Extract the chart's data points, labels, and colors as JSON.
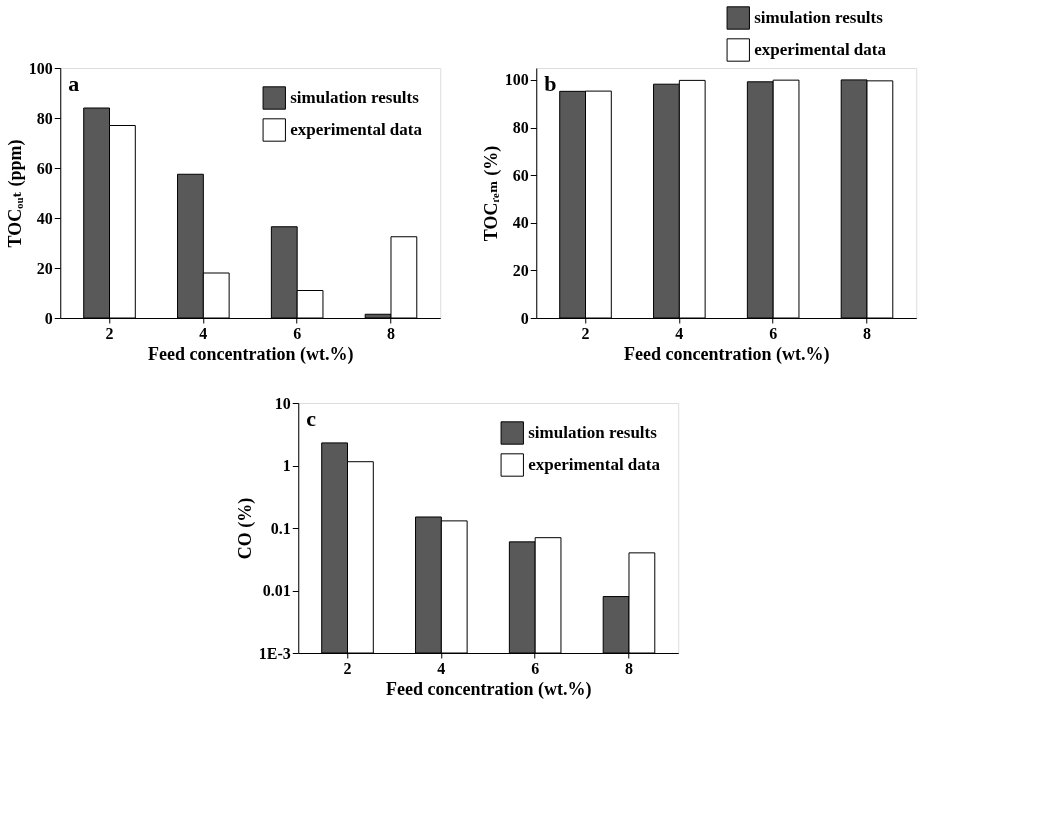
{
  "chart_data": [
    {
      "type": "bar",
      "categories": [
        "2",
        "4",
        "6",
        "8"
      ],
      "xlabel": "Feed concentration (wt.%)",
      "ylabel": "TOCₒᵤₜ (ppm)",
      "annotations": [
        "a"
      ],
      "ylim": [
        0,
        100
      ],
      "yticks": [
        0,
        20,
        40,
        60,
        80,
        100
      ],
      "grid": false,
      "legend": "top right",
      "series": [
        {
          "name": "simulation results",
          "color": "#595959",
          "values": [
            84,
            57.5,
            36.5,
            1.5
          ]
        },
        {
          "name": "experimental data",
          "color": "#ffffff",
          "values": [
            77,
            18,
            11,
            32.5
          ]
        }
      ]
    },
    {
      "type": "bar",
      "categories": [
        "2",
        "4",
        "6",
        "8"
      ],
      "xlabel": "Feed concentration (wt.%)",
      "ylabel": "TOCᵣₑₘ (%)",
      "annotations": [
        "b"
      ],
      "ylim": [
        0,
        105
      ],
      "yticks": [
        0,
        20,
        40,
        60,
        80,
        100
      ],
      "grid": false,
      "legend": "top",
      "series": [
        {
          "name": "simulation results",
          "color": "#595959",
          "values": [
            95.2,
            98.2,
            99.2,
            100
          ]
        },
        {
          "name": "experimental data",
          "color": "#ffffff",
          "values": [
            95.3,
            99.8,
            99.9,
            99.6
          ]
        }
      ]
    },
    {
      "type": "bar",
      "categories": [
        "2",
        "4",
        "6",
        "8"
      ],
      "xlabel": "Feed concentration (wt.%)",
      "ylabel": "CO (%)",
      "annotations": [
        "c"
      ],
      "log": true,
      "ylim": [
        0.001,
        10
      ],
      "yticks": [
        {
          "value": 0.001,
          "label": "1E-3"
        },
        0.01,
        0.1,
        1,
        10
      ],
      "grid": false,
      "legend": "top right",
      "series": [
        {
          "name": "simulation results",
          "color": "#595959",
          "values": [
            2.3,
            0.15,
            0.06,
            0.008
          ]
        },
        {
          "name": "experimental data",
          "color": "#ffffff",
          "values": [
            1.15,
            0.13,
            0.07,
            0.04
          ]
        }
      ]
    }
  ]
}
